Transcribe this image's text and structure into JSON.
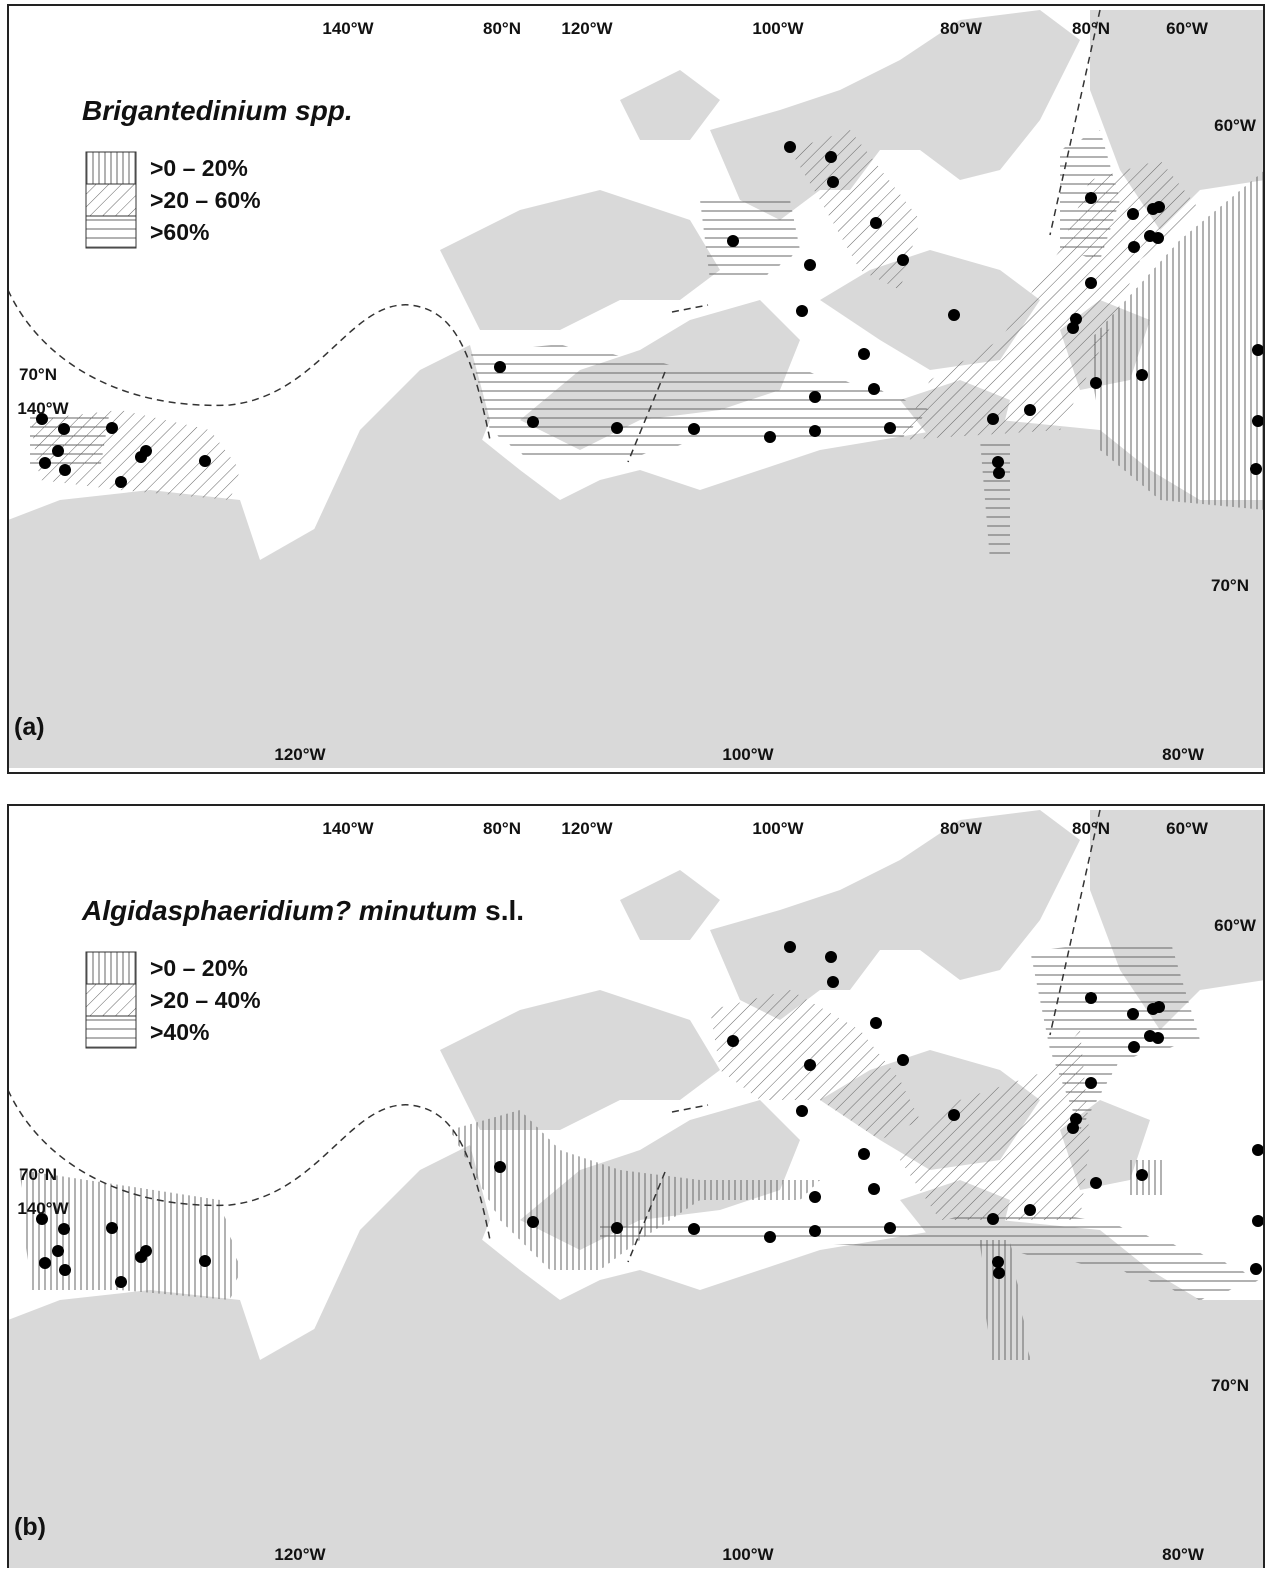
{
  "panels": [
    {
      "label": "(a)",
      "title_italic": "Brigantedinium spp.",
      "legend": [
        ">0 – 20%",
        ">20 – 60%",
        ">60%"
      ],
      "graticule_labels": [
        "140°W",
        "80°N",
        "120°W",
        "100°W",
        "80°W",
        "80°N",
        "60°W",
        "60°W",
        "70°N",
        "140°W",
        "70°N",
        "120°W",
        "100°W",
        "80°W"
      ]
    },
    {
      "label": "(b)",
      "title_italic": "Algidasphaeridium? minutum",
      "title_plain": "s.l.",
      "legend": [
        ">0 – 20%",
        ">20 – 40%",
        ">40%"
      ],
      "graticule_labels": [
        "140°W",
        "80°N",
        "120°W",
        "100°W",
        "80°W",
        "80°N",
        "60°W",
        "60°W",
        "70°N",
        "140°W",
        "70°N",
        "120°W",
        "100°W",
        "80°W"
      ]
    }
  ]
}
